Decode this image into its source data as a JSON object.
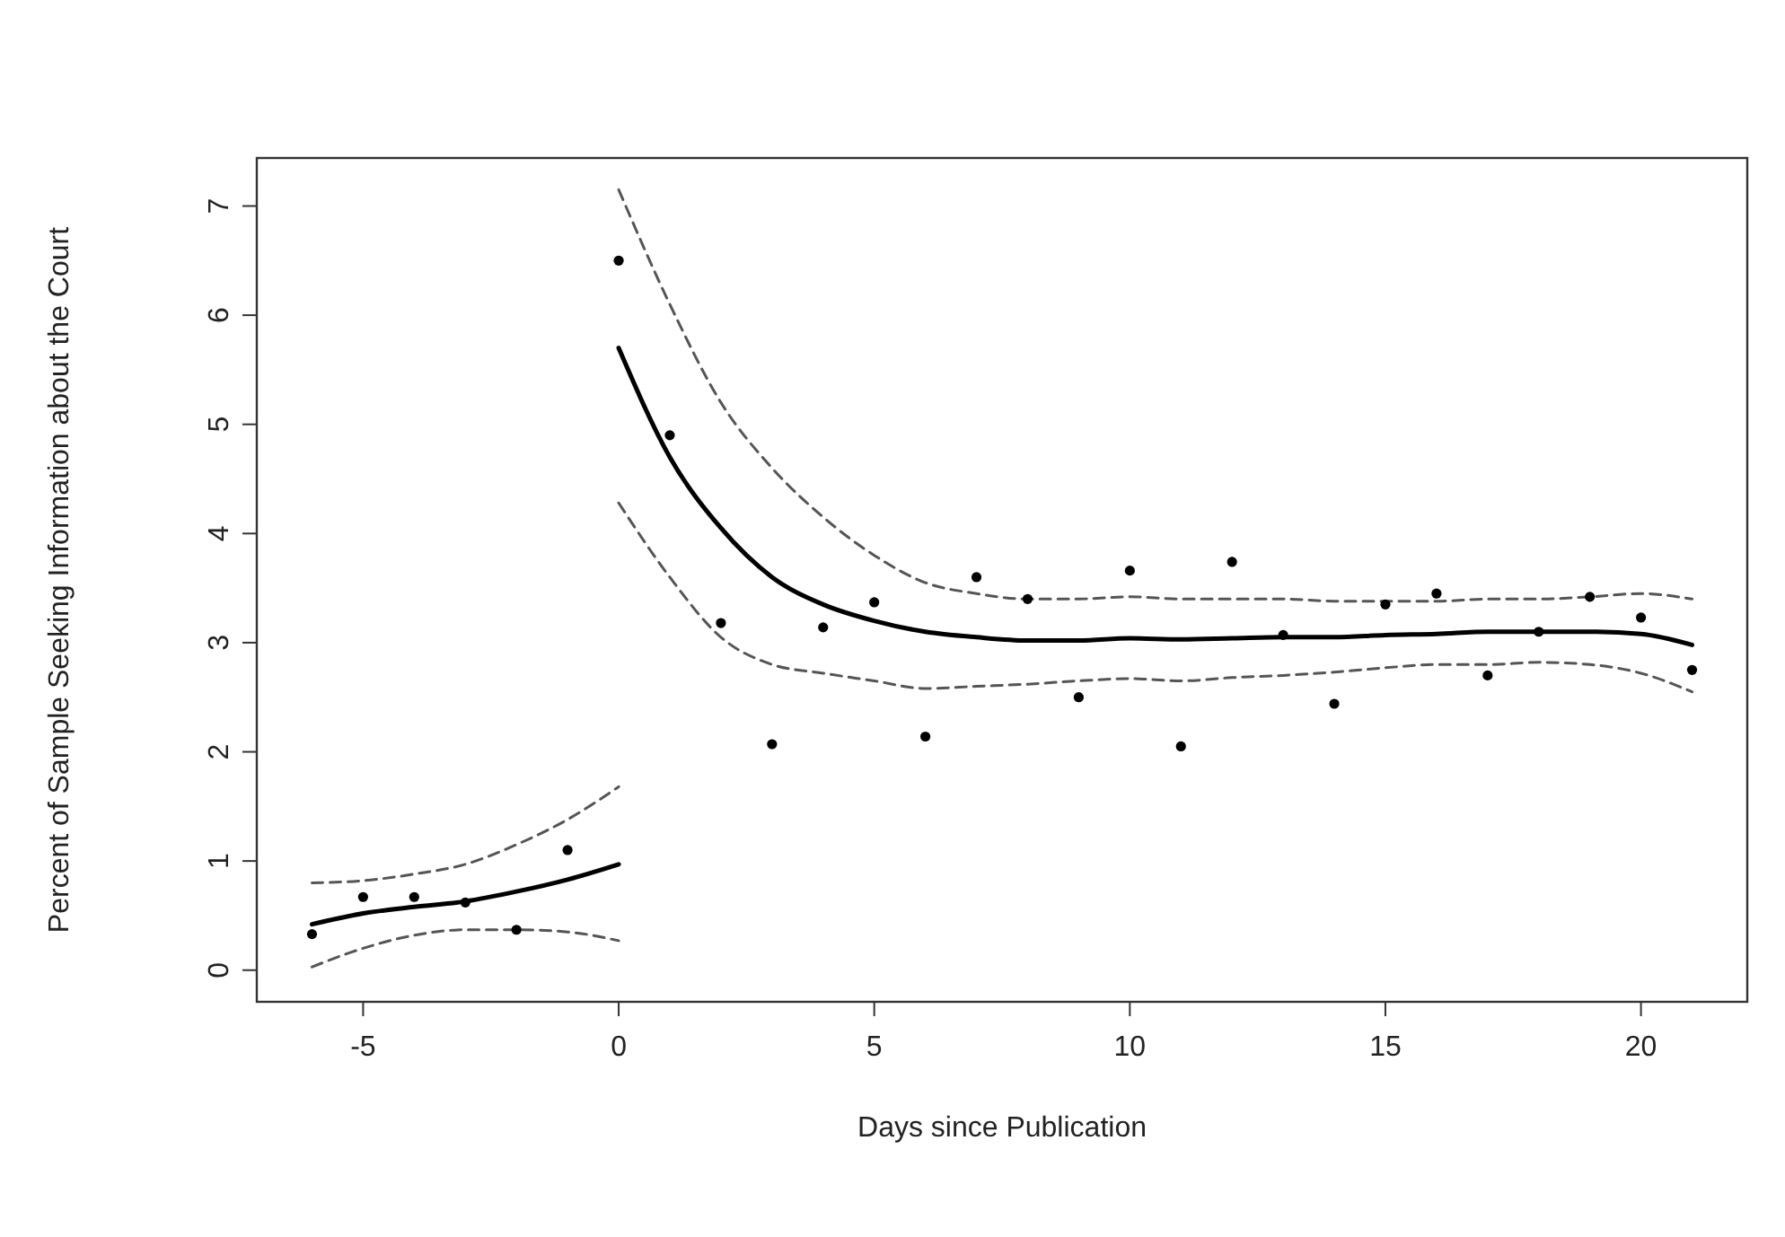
{
  "chart_data": {
    "type": "scatter",
    "xlabel": "Days since Publication",
    "ylabel": "Percent of Sample Seeking Information about the Court",
    "xlim": [
      -7.08,
      22.08
    ],
    "ylim": [
      -0.29,
      7.44
    ],
    "xticks": [
      -5,
      0,
      5,
      10,
      15,
      20
    ],
    "yticks": [
      0,
      1,
      2,
      3,
      4,
      5,
      6,
      7
    ],
    "grid": false,
    "series": [
      {
        "color": "#000000",
        "marker": "circle",
        "x": [
          -6,
          -5,
          -4,
          -3,
          -2,
          -1,
          0,
          1,
          2,
          3,
          4,
          5,
          6,
          7,
          8,
          9,
          10,
          11,
          12,
          13,
          14,
          15,
          16,
          17,
          18,
          19,
          20,
          21
        ],
        "values": [
          0.33,
          0.67,
          0.67,
          0.62,
          0.37,
          1.1,
          6.5,
          4.9,
          3.18,
          2.07,
          3.14,
          3.37,
          2.14,
          3.6,
          3.4,
          2.5,
          3.66,
          2.05,
          3.74,
          3.07,
          2.44,
          3.35,
          3.45,
          2.7,
          3.1,
          3.42,
          3.23,
          2.75
        ]
      },
      {
        "type": "line",
        "color": "#000000",
        "line_style": "solid",
        "x": [
          -6,
          -5,
          -4,
          -3,
          -2,
          -1,
          0
        ],
        "values": [
          0.42,
          0.52,
          0.58,
          0.63,
          0.72,
          0.83,
          0.97
        ]
      },
      {
        "type": "line",
        "color": "#555555",
        "line_style": "dashed",
        "x": [
          -6,
          -5,
          -4,
          -3,
          -2,
          -1,
          0
        ],
        "values": [
          0.8,
          0.82,
          0.88,
          0.97,
          1.15,
          1.38,
          1.68
        ]
      },
      {
        "type": "line",
        "color": "#555555",
        "line_style": "dashed",
        "x": [
          -6,
          -5,
          -4,
          -3,
          -2,
          -1,
          0
        ],
        "values": [
          0.03,
          0.2,
          0.32,
          0.37,
          0.37,
          0.35,
          0.27
        ]
      },
      {
        "type": "line",
        "color": "#000000",
        "line_style": "solid",
        "x": [
          0,
          1,
          2,
          3,
          4,
          5,
          6,
          7,
          8,
          9,
          10,
          11,
          12,
          13,
          14,
          15,
          16,
          17,
          18,
          19,
          20,
          21
        ],
        "values": [
          5.7,
          4.7,
          4.05,
          3.6,
          3.35,
          3.2,
          3.1,
          3.05,
          3.02,
          3.02,
          3.04,
          3.03,
          3.04,
          3.05,
          3.05,
          3.07,
          3.08,
          3.1,
          3.1,
          3.1,
          3.08,
          2.98
        ]
      },
      {
        "type": "line",
        "color": "#555555",
        "line_style": "dashed",
        "x": [
          0,
          1,
          2,
          3,
          4,
          5,
          6,
          7,
          8,
          9,
          10,
          11,
          12,
          13,
          14,
          15,
          16,
          17,
          18,
          19,
          20,
          21
        ],
        "values": [
          7.15,
          6.1,
          5.2,
          4.6,
          4.15,
          3.8,
          3.55,
          3.45,
          3.4,
          3.4,
          3.42,
          3.4,
          3.4,
          3.4,
          3.38,
          3.38,
          3.38,
          3.4,
          3.4,
          3.42,
          3.45,
          3.4
        ]
      },
      {
        "type": "line",
        "color": "#555555",
        "line_style": "dashed",
        "x": [
          0,
          1,
          2,
          3,
          4,
          5,
          6,
          7,
          8,
          9,
          10,
          11,
          12,
          13,
          14,
          15,
          16,
          17,
          18,
          19,
          20,
          21
        ],
        "values": [
          4.28,
          3.6,
          3.05,
          2.8,
          2.72,
          2.65,
          2.58,
          2.6,
          2.62,
          2.65,
          2.67,
          2.65,
          2.68,
          2.7,
          2.73,
          2.77,
          2.8,
          2.8,
          2.82,
          2.8,
          2.72,
          2.55
        ]
      }
    ]
  }
}
